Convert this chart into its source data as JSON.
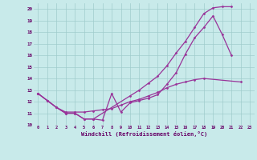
{
  "bg_color": "#c8eaea",
  "grid_color": "#a0cccc",
  "line_color": "#993399",
  "xlim_min": -0.5,
  "xlim_max": 23.5,
  "ylim_min": 10,
  "ylim_max": 20.5,
  "xticks": [
    0,
    1,
    2,
    3,
    4,
    5,
    6,
    7,
    8,
    9,
    10,
    11,
    12,
    13,
    14,
    15,
    16,
    17,
    18,
    19,
    20,
    21,
    22,
    23
  ],
  "yticks": [
    10,
    11,
    12,
    13,
    14,
    15,
    16,
    17,
    18,
    19,
    20
  ],
  "xlabel": "Windchill (Refroidissement éolien,°C)",
  "line1_x": [
    0,
    1,
    2,
    3,
    4,
    5,
    6,
    7,
    8,
    9,
    10,
    11,
    12,
    13,
    14,
    15,
    16,
    17,
    18,
    19,
    20,
    21
  ],
  "line1_y": [
    12.7,
    12.1,
    11.5,
    11.0,
    11.0,
    10.5,
    10.5,
    10.4,
    12.7,
    11.1,
    11.9,
    12.1,
    12.3,
    12.6,
    13.5,
    14.5,
    16.1,
    17.5,
    18.4,
    19.4,
    17.8,
    16.0
  ],
  "line2_x": [
    0,
    1,
    2,
    3,
    4,
    5,
    6,
    10,
    11,
    12,
    13,
    14,
    15,
    16,
    17,
    18,
    19,
    20,
    21
  ],
  "line2_y": [
    12.7,
    12.1,
    11.5,
    11.0,
    11.0,
    10.5,
    10.5,
    12.5,
    13.0,
    13.6,
    14.2,
    15.1,
    16.2,
    17.2,
    18.4,
    19.6,
    20.1,
    20.2,
    20.2
  ],
  "line3_x": [
    0,
    1,
    2,
    3,
    4,
    5,
    6,
    7,
    8,
    9,
    10,
    11,
    12,
    13,
    14,
    15,
    16,
    17,
    18,
    22
  ],
  "line3_y": [
    12.7,
    12.1,
    11.5,
    11.1,
    11.1,
    11.1,
    11.2,
    11.3,
    11.4,
    11.7,
    12.0,
    12.2,
    12.5,
    12.8,
    13.2,
    13.5,
    13.7,
    13.9,
    14.0,
    13.7
  ],
  "marker_style": "D",
  "marker_size": 1.5,
  "line_width": 0.9
}
